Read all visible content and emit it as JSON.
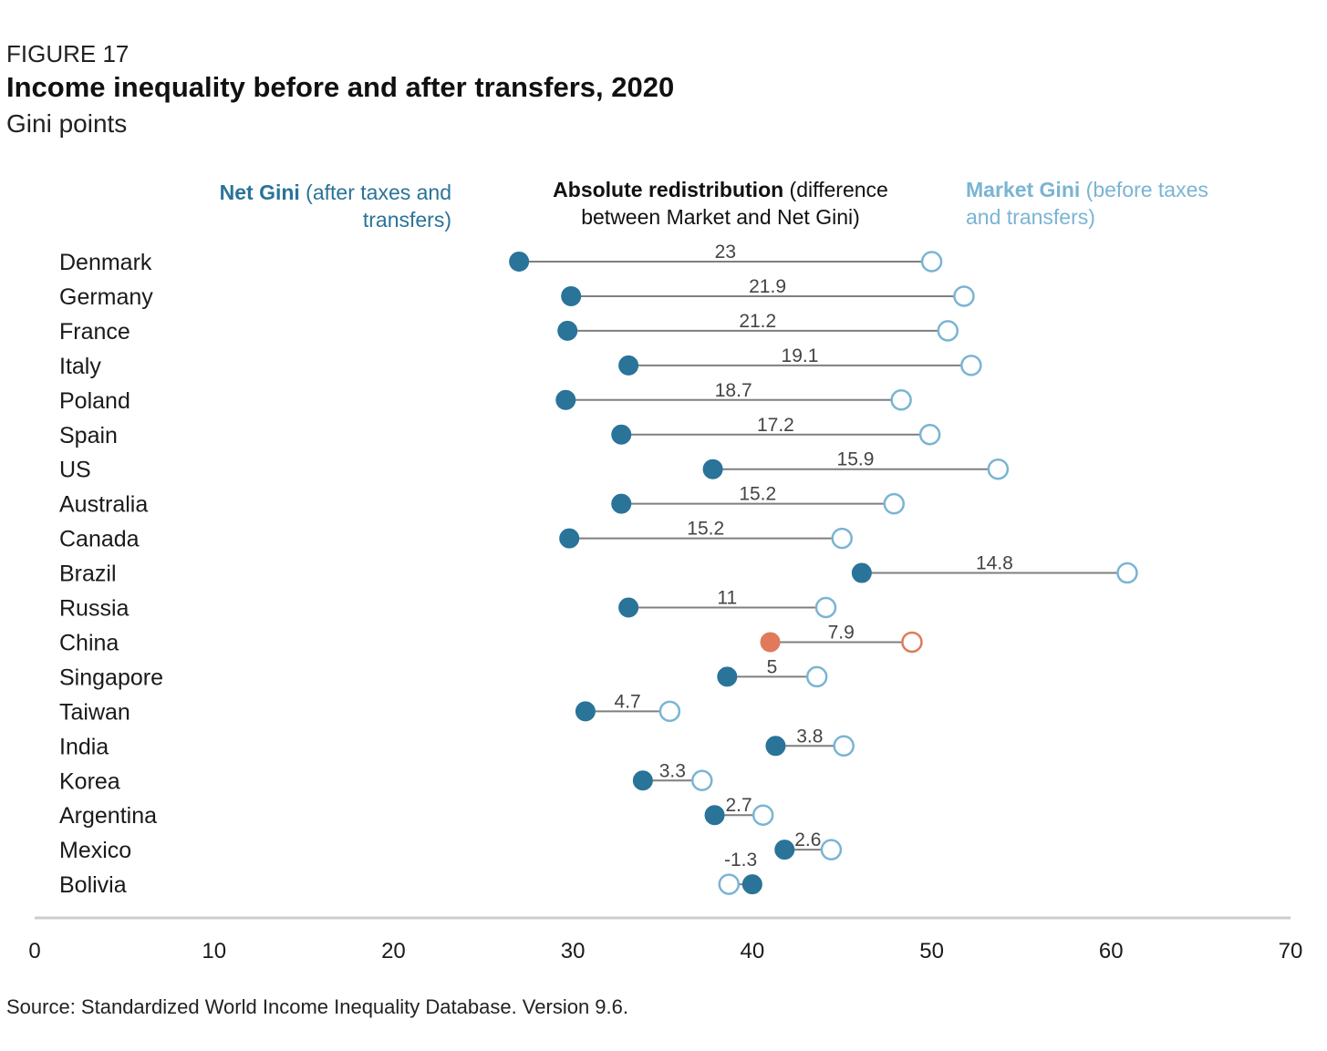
{
  "header": {
    "figure_label": "FIGURE 17",
    "title": "Income inequality before and after transfers, 2020",
    "subtitle": "Gini points"
  },
  "legend": {
    "net_bold": "Net Gini",
    "net_rest": " (after taxes and transfers)",
    "absolute_bold": "Absolute redistribution",
    "absolute_rest": " (difference between Market and Net Gini)",
    "market_bold": "Market Gini",
    "market_rest": " (before taxes and transfers)"
  },
  "source": "Source: Standardized World Income Inequality Database. Version 9.6.",
  "chart_data": {
    "type": "dumbbell",
    "xlim": [
      0,
      70
    ],
    "x_ticks": [
      0,
      10,
      20,
      30,
      40,
      50,
      60,
      70
    ],
    "colors": {
      "net": "#2a7399",
      "market": "#7ab4d3",
      "highlight": "#e07a5a",
      "connector": "#7f7f7f",
      "axis": "#cccccc"
    },
    "rows": [
      {
        "country": "Denmark",
        "net": 27.0,
        "market": 50.0,
        "diff": "23"
      },
      {
        "country": "Germany",
        "net": 29.9,
        "market": 51.8,
        "diff": "21.9"
      },
      {
        "country": "France",
        "net": 29.7,
        "market": 50.9,
        "diff": "21.2"
      },
      {
        "country": "Italy",
        "net": 33.1,
        "market": 52.2,
        "diff": "19.1"
      },
      {
        "country": "Poland",
        "net": 29.6,
        "market": 48.3,
        "diff": "18.7"
      },
      {
        "country": "Spain",
        "net": 32.7,
        "market": 49.9,
        "diff": "17.2"
      },
      {
        "country": "US",
        "net": 37.8,
        "market": 53.7,
        "diff": "15.9"
      },
      {
        "country": "Australia",
        "net": 32.7,
        "market": 47.9,
        "diff": "15.2"
      },
      {
        "country": "Canada",
        "net": 29.8,
        "market": 45.0,
        "diff": "15.2"
      },
      {
        "country": "Brazil",
        "net": 46.1,
        "market": 60.9,
        "diff": "14.8"
      },
      {
        "country": "Russia",
        "net": 33.1,
        "market": 44.1,
        "diff": "11"
      },
      {
        "country": "China",
        "net": 41.0,
        "market": 48.9,
        "diff": "7.9",
        "highlight": true
      },
      {
        "country": "Singapore",
        "net": 38.6,
        "market": 43.6,
        "diff": "5"
      },
      {
        "country": "Taiwan",
        "net": 30.7,
        "market": 35.4,
        "diff": "4.7"
      },
      {
        "country": "India",
        "net": 41.3,
        "market": 45.1,
        "diff": "3.8"
      },
      {
        "country": "Korea",
        "net": 33.9,
        "market": 37.2,
        "diff": "3.3"
      },
      {
        "country": "Argentina",
        "net": 37.9,
        "market": 40.6,
        "diff": "2.7"
      },
      {
        "country": "Mexico",
        "net": 41.8,
        "market": 44.4,
        "diff": "2.6"
      },
      {
        "country": "Bolivia",
        "net": 40.0,
        "market": 38.7,
        "diff": "-1.3"
      }
    ]
  }
}
